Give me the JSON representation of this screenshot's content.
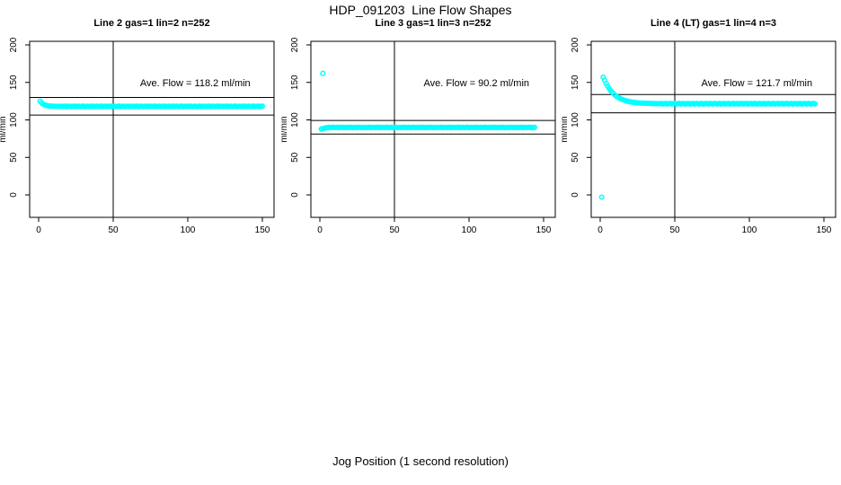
{
  "page": {
    "title": "HDP_091203  Line Flow Shapes",
    "xlabel": "Jog Position (1 second resolution)"
  },
  "chart_data": {
    "type": "scatter",
    "title": "HDP_091203  Line Flow Shapes",
    "xlabel": "Jog Position (1 second resolution)",
    "ylabel": "ml/min",
    "x_ticks": [
      0,
      50,
      100,
      150
    ],
    "y_ticks": [
      0,
      50,
      100,
      150,
      200
    ],
    "xlim": [
      -6,
      158
    ],
    "ylim": [
      -30,
      205
    ],
    "grid": false,
    "marker_color": "#00FFFF",
    "line_color": "#000000",
    "panels": [
      {
        "title": "Line 2 gas=1 lin=2 n=252",
        "annotation": "Ave. Flow =  118.2  ml/min",
        "annotation_xy": [
          105,
          150
        ],
        "ave_flow": 118.2,
        "hlines": [
          130.0,
          106.4
        ],
        "vline_x": 50,
        "outliers": [],
        "series": {
          "x_start": 1,
          "x_step": 1,
          "y": [
            125.0,
            122.7,
            121.1,
            120.1,
            119.4,
            118.9,
            118.6,
            118.4,
            118.3,
            118.2,
            118.1,
            118.1,
            118.0,
            118.0,
            118.2,
            117.8,
            118.0,
            118.3,
            117.7,
            118.1,
            118.2,
            117.8,
            118.0,
            118.3,
            117.7,
            118.1,
            118.2,
            117.8,
            118.0,
            118.3,
            117.7,
            118.1,
            118.2,
            117.8,
            118.0,
            118.3,
            117.7,
            118.1,
            118.2,
            117.8,
            118.0,
            118.3,
            117.7,
            118.1,
            118.2,
            117.8,
            118.0,
            118.3,
            117.7,
            118.1,
            118.2,
            117.8,
            118.0,
            118.3,
            117.7,
            118.1,
            118.2,
            117.8,
            118.0,
            118.3,
            117.7,
            118.1,
            118.2,
            117.8,
            118.0,
            118.3,
            117.7,
            118.1,
            118.2,
            117.8,
            118.0,
            118.3,
            117.7,
            118.1,
            118.2,
            117.8,
            118.0,
            118.3,
            117.7,
            118.1,
            118.2,
            117.8,
            118.0,
            118.3,
            117.7,
            118.1,
            118.2,
            117.8,
            118.0,
            118.3,
            117.7,
            118.1,
            118.2,
            117.8,
            118.0,
            118.3,
            117.7,
            118.1,
            118.2,
            117.8,
            118.0,
            118.3,
            117.7,
            118.1,
            118.2,
            117.8,
            118.0,
            118.3,
            117.7,
            118.1,
            118.2,
            117.8,
            118.0,
            118.3,
            117.7,
            118.1,
            118.2,
            117.8,
            118.0,
            118.3,
            117.7,
            118.1,
            118.2,
            117.8,
            118.0,
            118.3,
            117.7,
            118.1,
            118.2,
            117.8,
            118.0,
            118.3,
            117.7,
            118.1,
            118.2,
            117.8,
            118.0,
            118.3,
            117.7,
            118.1,
            118.2,
            117.8,
            118.0,
            118.3,
            117.7,
            118.1,
            118.2,
            117.8,
            118.0,
            118.3
          ]
        }
      },
      {
        "title": "Line 3 gas=1 lin=3 n=252",
        "annotation": "Ave. Flow =  90.2  ml/min",
        "annotation_xy": [
          105,
          150
        ],
        "ave_flow": 90.2,
        "hlines": [
          99.2,
          81.2
        ],
        "vline_x": 50,
        "outliers": [
          [
            2,
            162
          ]
        ],
        "series": {
          "x_start": 1,
          "x_step": 1,
          "y": [
            87.8,
            88.4,
            88.9,
            89.4,
            89.7,
            90.1,
            89.7,
            90.0,
            90.2,
            89.6,
            89.9,
            90.1,
            89.7,
            90.0,
            90.2,
            89.6,
            89.9,
            90.1,
            89.7,
            90.0,
            90.2,
            89.6,
            89.9,
            90.1,
            89.7,
            90.0,
            90.2,
            89.6,
            89.9,
            90.1,
            89.7,
            90.0,
            90.2,
            89.6,
            89.9,
            90.1,
            89.7,
            90.0,
            90.2,
            89.6,
            89.9,
            90.1,
            89.7,
            90.0,
            90.2,
            89.6,
            89.9,
            90.1,
            89.7,
            90.0,
            90.2,
            89.6,
            89.9,
            90.1,
            89.7,
            90.0,
            90.2,
            89.6,
            89.9,
            90.1,
            89.7,
            90.0,
            90.2,
            89.6,
            89.9,
            90.1,
            89.7,
            90.0,
            90.2,
            89.6,
            89.9,
            90.1,
            89.7,
            90.0,
            90.2,
            89.6,
            89.9,
            90.1,
            89.7,
            90.0,
            90.2,
            89.6,
            89.9,
            90.1,
            89.7,
            90.0,
            90.2,
            89.6,
            89.9,
            90.1,
            89.7,
            90.0,
            90.2,
            89.6,
            89.9,
            90.1,
            89.7,
            90.0,
            90.2,
            89.6,
            89.9,
            90.1,
            89.7,
            90.0,
            90.2,
            89.6,
            89.9,
            90.1,
            89.7,
            90.0,
            90.2,
            89.6,
            89.9,
            90.1,
            89.7,
            90.0,
            90.2,
            89.6,
            89.9,
            90.1,
            89.7,
            90.0,
            90.2,
            89.6,
            89.9,
            90.1,
            89.7,
            90.0,
            90.2,
            89.6,
            89.9,
            90.1,
            89.7,
            90.0,
            90.2,
            89.6,
            89.9,
            90.1,
            89.7,
            90.0,
            90.2,
            89.6,
            89.9,
            90.1
          ]
        }
      },
      {
        "title": "Line 4 (LT) gas=1 lin=4 n=3",
        "annotation": "Ave. Flow =  121.7  ml/min",
        "annotation_xy": [
          105,
          150
        ],
        "ave_flow": 121.7,
        "hlines": [
          133.9,
          109.5
        ],
        "vline_x": 50,
        "outliers": [
          [
            1,
            -3
          ]
        ],
        "series": {
          "x_start": 2,
          "x_step": 1,
          "y": [
            157.0,
            152.7,
            148.5,
            144.9,
            141.8,
            139.1,
            136.8,
            134.7,
            133.0,
            131.4,
            130.1,
            129.0,
            128.0,
            127.1,
            126.4,
            125.7,
            125.1,
            124.7,
            124.2,
            123.9,
            123.6,
            123.3,
            123.0,
            122.8,
            122.7,
            122.5,
            122.4,
            122.3,
            122.2,
            122.1,
            122.0,
            122.0,
            121.9,
            121.9,
            121.8,
            121.8,
            121.7,
            121.7,
            121.7,
            121.9,
            121.3,
            121.6,
            122.0,
            121.2,
            121.7,
            121.9,
            121.3,
            121.6,
            122.0,
            121.2,
            121.7,
            121.9,
            121.3,
            121.6,
            122.0,
            121.2,
            121.7,
            121.9,
            121.3,
            121.6,
            122.0,
            121.2,
            121.7,
            121.9,
            121.3,
            121.6,
            122.0,
            121.2,
            121.7,
            121.9,
            121.3,
            121.6,
            122.0,
            121.2,
            121.7,
            121.9,
            121.3,
            121.6,
            122.0,
            121.2,
            121.7,
            121.9,
            121.3,
            121.6,
            122.0,
            121.2,
            121.7,
            121.9,
            121.3,
            121.6,
            122.0,
            121.2,
            121.7,
            121.9,
            121.3,
            121.6,
            122.0,
            121.2,
            121.7,
            121.9,
            121.3,
            121.6,
            122.0,
            121.2,
            121.7,
            121.9,
            121.3,
            121.6,
            122.0,
            121.2,
            121.7,
            121.9,
            121.3,
            121.6,
            122.0,
            121.2,
            121.7,
            121.9,
            121.3,
            121.6,
            122.0,
            121.2,
            121.7,
            121.9,
            121.3,
            121.6,
            122.0,
            121.2,
            121.7,
            121.9,
            121.3,
            121.6,
            122.0,
            121.2,
            121.7,
            121.9,
            121.3,
            121.6,
            122.0,
            121.2,
            121.7,
            121.9,
            121.3
          ]
        }
      }
    ]
  }
}
